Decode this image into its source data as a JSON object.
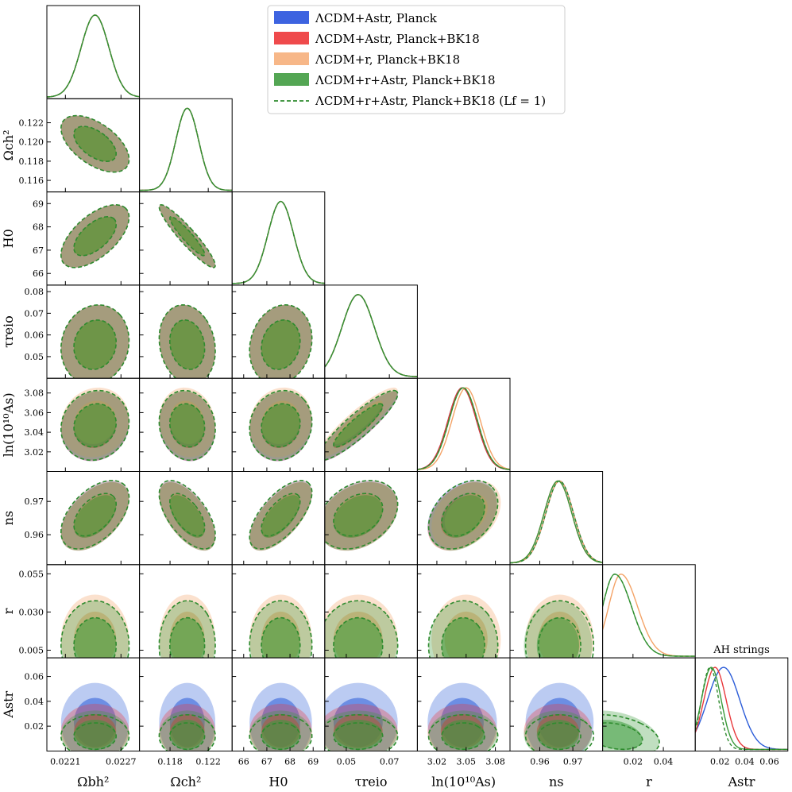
{
  "chart_data": {
    "type": "triangle",
    "title": "AH strings",
    "parameters": [
      {
        "id": "omegab",
        "label": "Ωbh²",
        "range": [
          0.0219,
          0.0229
        ],
        "ticks": [
          0.0221,
          0.0227
        ],
        "tick_labels": [
          "0.0221",
          "0.0227"
        ],
        "mean": 0.02242,
        "sigma": 0.00015
      },
      {
        "id": "omegac",
        "label": "Ωch²",
        "range": [
          0.1148,
          0.1245
        ],
        "ticks": [
          0.116,
          0.118,
          0.12,
          0.122
        ],
        "tick_labels": [
          "0.116",
          "0.118",
          "0.120",
          "0.122"
        ],
        "mean": 0.1198,
        "sigma": 0.0012
      },
      {
        "id": "H0",
        "label": "H0",
        "range": [
          65.5,
          69.5
        ],
        "ticks": [
          66,
          67,
          68,
          69
        ],
        "tick_labels": [
          "66",
          "67",
          "68",
          "69"
        ],
        "mean": 67.6,
        "sigma": 0.55
      },
      {
        "id": "tau",
        "label": "τreio",
        "range": [
          0.04,
          0.083
        ],
        "ticks": [
          0.05,
          0.06,
          0.07,
          0.08
        ],
        "tick_labels": [
          "0.05",
          "0.06",
          "0.07",
          "0.08"
        ],
        "mean": 0.0555,
        "sigma": 0.0075
      },
      {
        "id": "lnAs",
        "label": "ln(10¹⁰As)",
        "range": [
          3.0,
          3.095
        ],
        "ticks": [
          3.02,
          3.04,
          3.05,
          3.06,
          3.08
        ],
        "tick_labels": [
          "3.02",
          "3.04",
          "3.05",
          "3.06",
          "3.08"
        ],
        "mean": 3.047,
        "sigma": 0.0145
      },
      {
        "id": "ns",
        "label": "ns",
        "range": [
          0.951,
          0.979
        ],
        "ticks": [
          0.96,
          0.97
        ],
        "tick_labels": [
          "0.96",
          "0.97"
        ],
        "mean": 0.9655,
        "sigma": 0.0042
      },
      {
        "id": "r",
        "label": "r",
        "range": [
          0.0,
          0.061
        ],
        "ticks": [
          0.005,
          0.02,
          0.03,
          0.04,
          0.055
        ],
        "tick_labels": [
          "0.005",
          "0.02",
          "0.030",
          "0.04",
          "0.055"
        ],
        "mean": 0.008,
        "sigma": 0.012
      },
      {
        "id": "Astr",
        "label": "Astr",
        "range": [
          0.0,
          0.075
        ],
        "ticks": [
          0.02,
          0.04,
          0.06
        ],
        "tick_labels": [
          "0.02",
          "0.04",
          "0.06"
        ],
        "mean": 0.022,
        "sigma": 0.012
      }
    ],
    "y_axis_ticks": {
      "omegac": {
        "ticks": [
          0.116,
          0.118,
          0.12,
          0.122
        ],
        "labels": [
          "0.116",
          "0.118",
          "0.120",
          "0.122"
        ]
      },
      "H0": {
        "ticks": [
          66,
          67,
          68,
          69
        ],
        "labels": [
          "66",
          "67",
          "68",
          "69"
        ]
      },
      "tau": {
        "ticks": [
          0.05,
          0.06,
          0.07,
          0.08
        ],
        "labels": [
          "0.05",
          "0.06",
          "0.07",
          "0.08"
        ]
      },
      "lnAs": {
        "ticks": [
          3.02,
          3.04,
          3.06,
          3.08
        ],
        "labels": [
          "3.02",
          "3.04",
          "3.06",
          "3.08"
        ]
      },
      "ns": {
        "ticks": [
          0.96,
          0.97
        ],
        "labels": [
          "0.96",
          "0.97"
        ]
      },
      "r": {
        "ticks": [
          0.005,
          0.03,
          0.055
        ],
        "labels": [
          "0.005",
          "0.030",
          "0.055"
        ]
      },
      "Astr": {
        "ticks": [
          0.02,
          0.04,
          0.06
        ],
        "labels": [
          "0.02",
          "0.04",
          "0.06"
        ]
      }
    },
    "x_axis_ticks": {
      "omegab": {
        "ticks": [
          0.0221,
          0.0227
        ],
        "labels": [
          "0.0221",
          "0.0227"
        ]
      },
      "omegac": {
        "ticks": [
          0.118,
          0.122
        ],
        "labels": [
          "0.118",
          "0.122"
        ]
      },
      "H0": {
        "ticks": [
          66,
          67,
          68,
          69
        ],
        "labels": [
          "66",
          "67",
          "68",
          "69"
        ]
      },
      "tau": {
        "ticks": [
          0.05,
          0.07
        ],
        "labels": [
          "0.05",
          "0.07"
        ]
      },
      "lnAs": {
        "ticks": [
          3.02,
          3.05,
          3.08
        ],
        "labels": [
          "3.02",
          "3.05",
          "3.08"
        ]
      },
      "ns": {
        "ticks": [
          0.96,
          0.97
        ],
        "labels": [
          "0.96",
          "0.97"
        ]
      },
      "r": {
        "ticks": [
          0.02,
          0.04
        ],
        "labels": [
          "0.02",
          "0.04"
        ]
      },
      "Astr": {
        "ticks": [
          0.02,
          0.04,
          0.06
        ],
        "labels": [
          "0.02",
          "0.04",
          "0.06"
        ]
      }
    },
    "correlations": {
      "omegac|omegab": -0.55,
      "H0|omegab": 0.6,
      "H0|omegac": -0.93,
      "tau|omegab": 0.1,
      "tau|omegac": -0.15,
      "tau|H0": 0.15,
      "lnAs|omegab": 0.1,
      "lnAs|omegac": -0.1,
      "lnAs|H0": 0.1,
      "lnAs|tau": 0.9,
      "ns|omegab": 0.5,
      "ns|omegac": -0.6,
      "ns|H0": 0.65,
      "ns|tau": 0.3,
      "ns|lnAs": 0.35,
      "r|r": 0,
      "Astr|r": -0.3
    },
    "series": [
      {
        "name": "ΛCDM+Astr, Planck",
        "color": "#2b5cd8",
        "lnAs_mean": 3.046,
        "ns_mean": 0.966,
        "Astr_peak": 0.023,
        "Astr_sigma": 0.013,
        "has_r": false,
        "has_astr": true
      },
      {
        "name": "ΛCDM+Astr, Planck+BK18",
        "color": "#e8383b",
        "lnAs_mean": 3.046,
        "ns_mean": 0.9655,
        "Astr_peak": 0.016,
        "Astr_sigma": 0.009,
        "has_r": false,
        "has_astr": true
      },
      {
        "name": "ΛCDM+r, Planck+BK18",
        "color": "#f4a367",
        "lnAs_mean": 3.05,
        "ns_mean": 0.966,
        "r_peak": 0.012,
        "has_r": true,
        "has_astr": false
      },
      {
        "name": "ΛCDM+r+Astr, Planck+BK18",
        "color": "#3a9a3a",
        "lnAs_mean": 3.047,
        "ns_mean": 0.9655,
        "r_peak": 0.008,
        "Astr_peak": 0.013,
        "Astr_sigma": 0.008,
        "has_r": true,
        "has_astr": true
      },
      {
        "name": "ΛCDM+r+Astr, Planck+BK18 (Lf = 1)",
        "color": "#2e8b2e",
        "lnAs_mean": 3.047,
        "ns_mean": 0.966,
        "r_peak": 0.008,
        "Astr_peak": 0.012,
        "Astr_sigma": 0.007,
        "has_r": true,
        "has_astr": true,
        "dashed": true
      }
    ]
  },
  "legend": [
    {
      "text": "ΛCDM+Astr, Planck",
      "color": "#3d63e0",
      "style": "patch"
    },
    {
      "text": "ΛCDM+Astr, Planck+BK18",
      "color": "#ef4a4c",
      "style": "patch"
    },
    {
      "text": "ΛCDM+r, Planck+BK18",
      "color": "#f7b788",
      "style": "patch"
    },
    {
      "text": "ΛCDM+r+Astr, Planck+BK18",
      "color": "#54a654",
      "style": "patch"
    },
    {
      "text": "ΛCDM+r+Astr, Planck+BK18 (Lf = 1)",
      "color": "#2e8b2e",
      "style": "dashed"
    }
  ]
}
